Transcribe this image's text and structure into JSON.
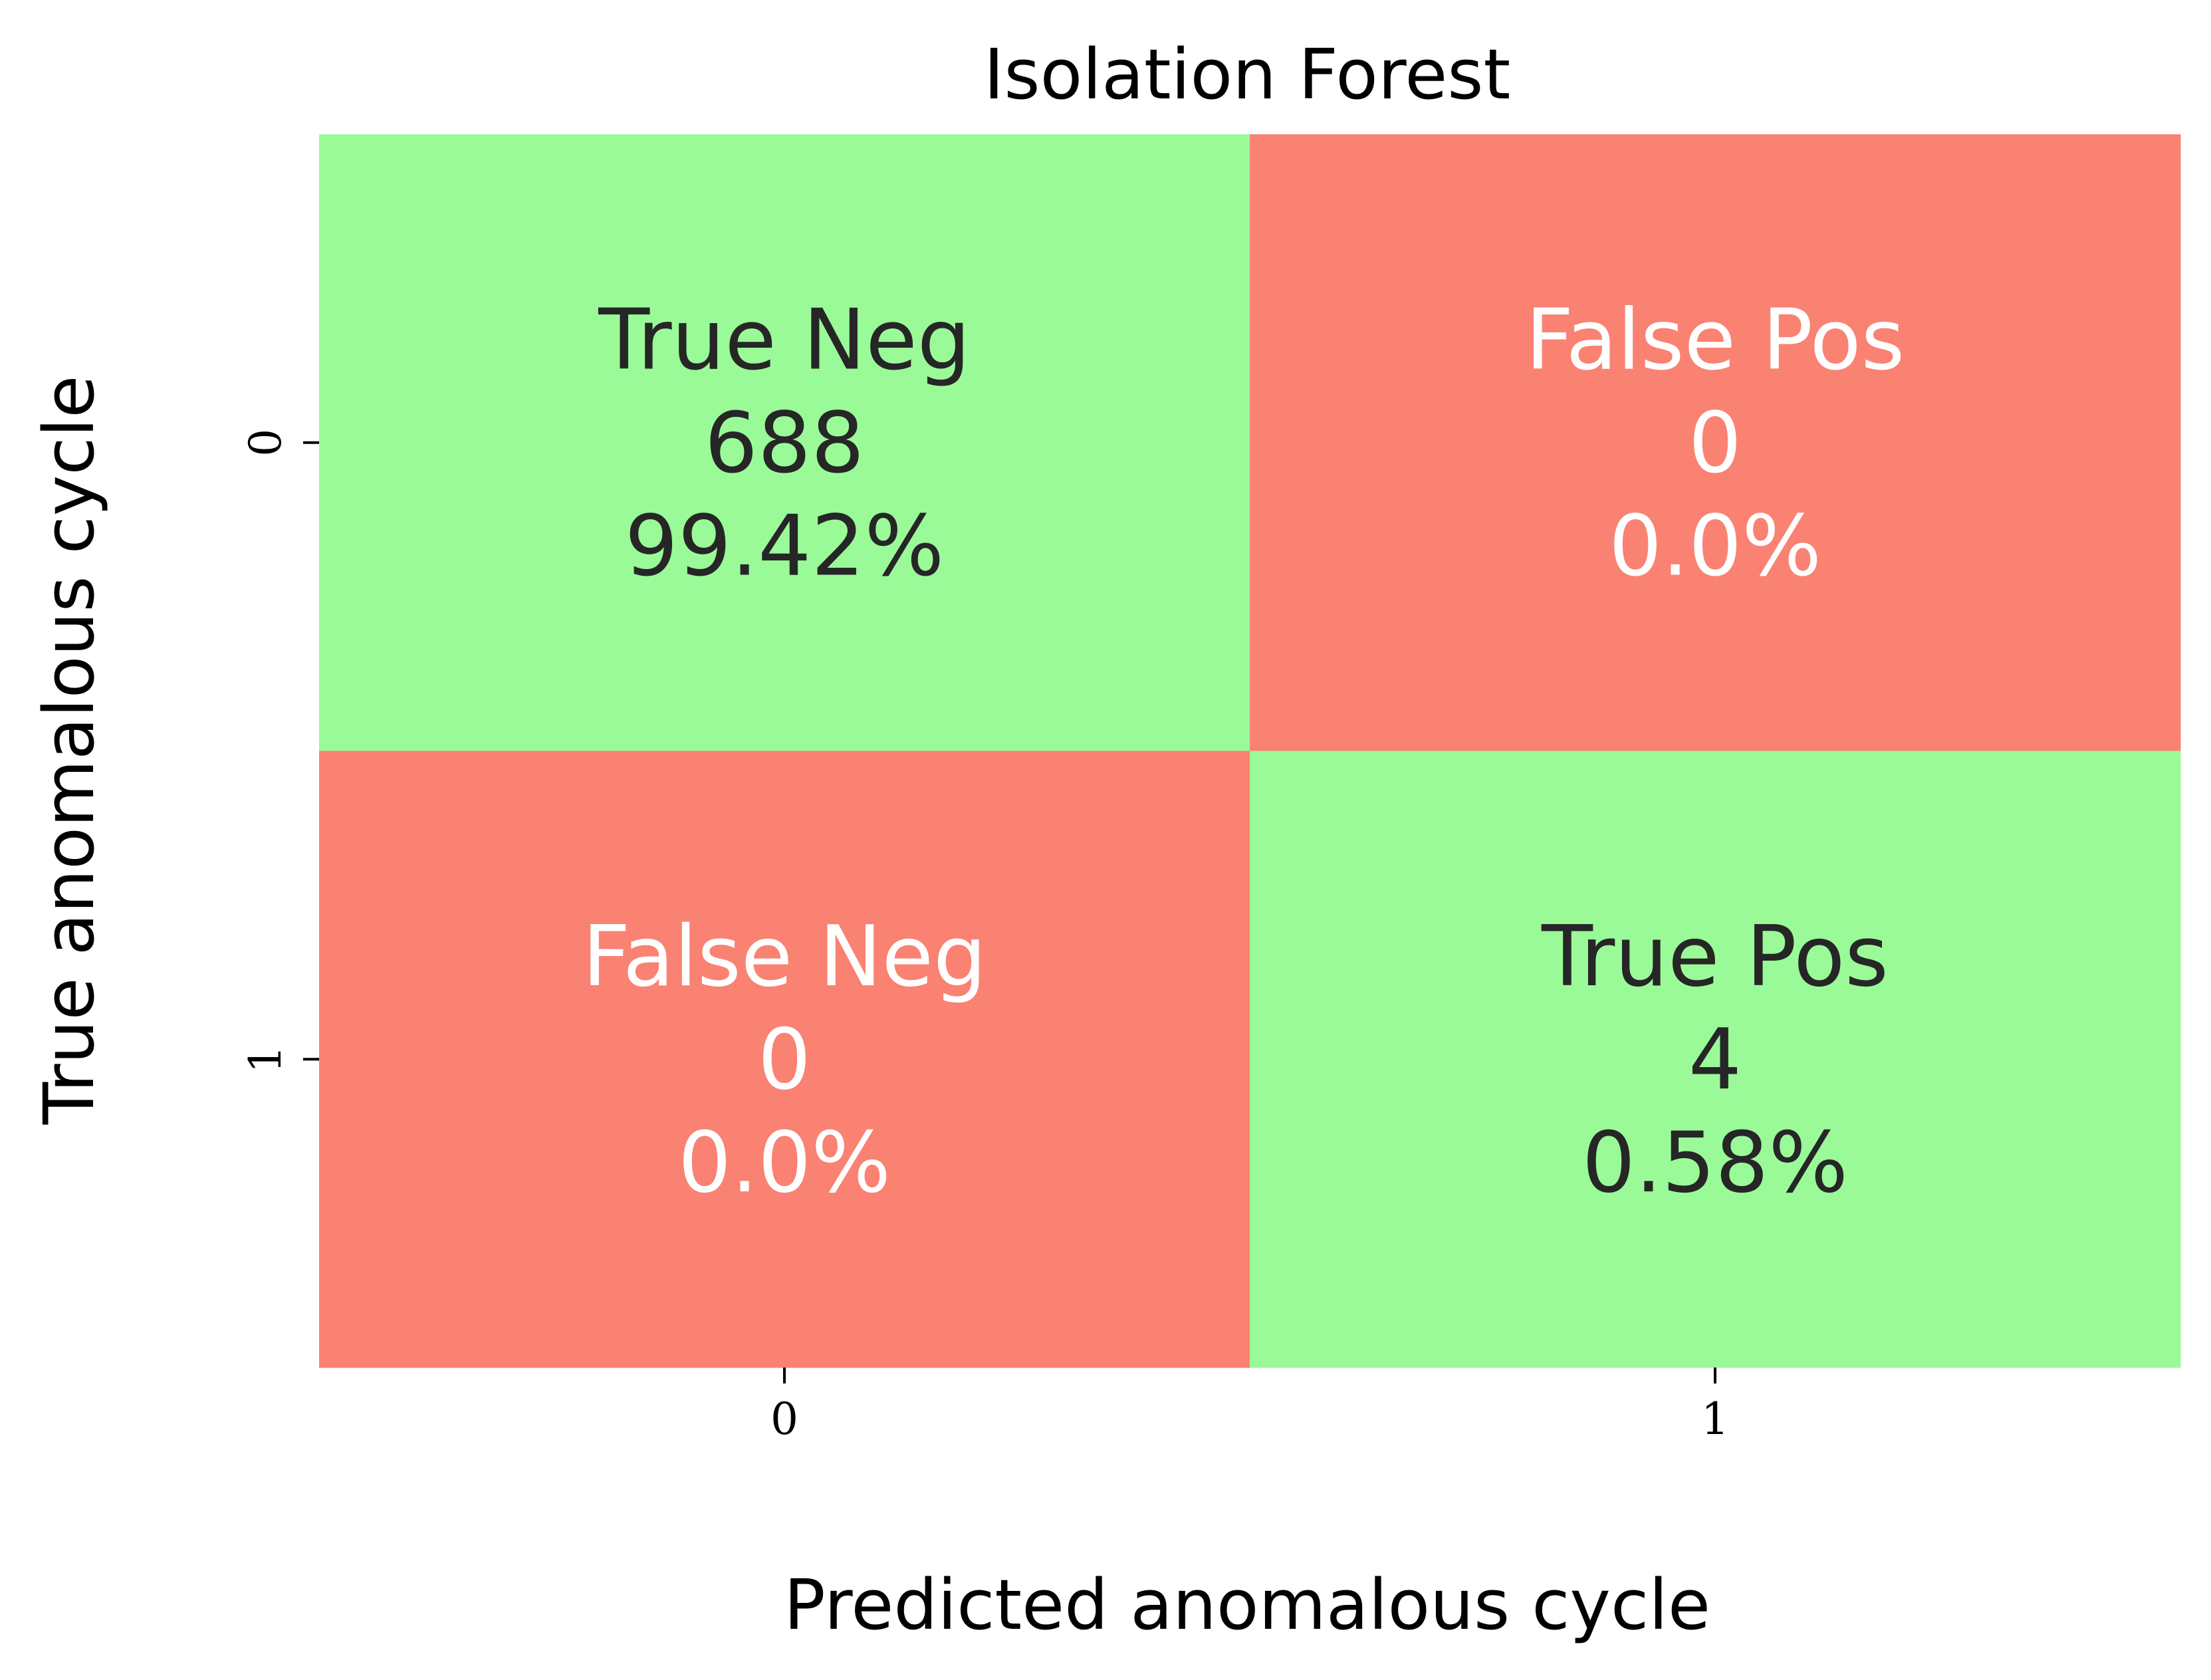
{
  "chart_data": {
    "type": "heatmap",
    "title": "Isolation Forest",
    "xlabel": "Predicted anomalous cycle",
    "ylabel": "True anomalous cycle",
    "x_categories": [
      "0",
      "1"
    ],
    "y_categories": [
      "0",
      "1"
    ],
    "colors": {
      "correct": "#9afa98",
      "incorrect": "#f98273",
      "dark_text": "#262626",
      "light_text": "#ffffff"
    },
    "cells": [
      {
        "row": 0,
        "col": 0,
        "label": "True Neg",
        "count": "688",
        "percent": "99.42%",
        "value": 688,
        "kind": "correct"
      },
      {
        "row": 0,
        "col": 1,
        "label": "False Pos",
        "count": "0",
        "percent": "0.0%",
        "value": 0,
        "kind": "incorrect"
      },
      {
        "row": 1,
        "col": 0,
        "label": "False Neg",
        "count": "0",
        "percent": "0.0%",
        "value": 0,
        "kind": "incorrect"
      },
      {
        "row": 1,
        "col": 1,
        "label": "True Pos",
        "count": "4",
        "percent": "0.58%",
        "value": 4,
        "kind": "correct"
      }
    ]
  }
}
